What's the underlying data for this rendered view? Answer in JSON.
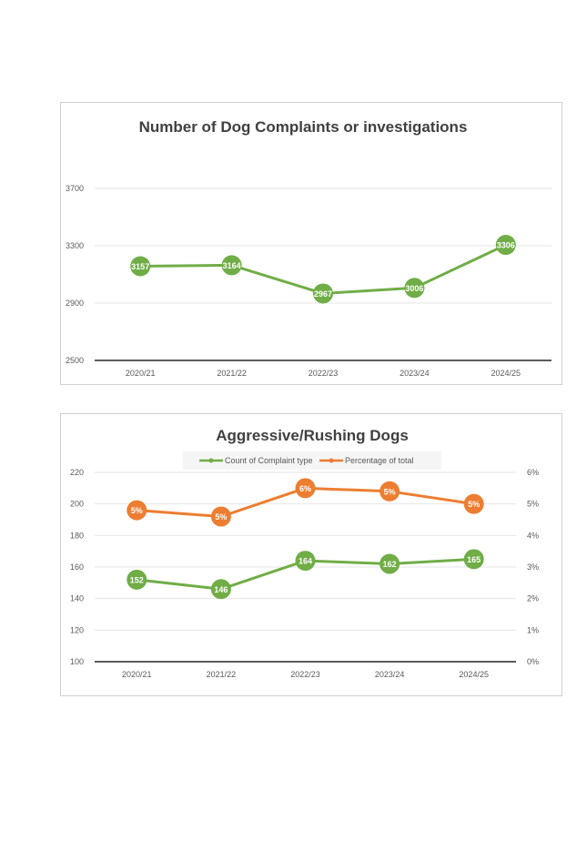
{
  "colors": {
    "green": "#70AD47",
    "orange": "#ED7D31",
    "grid": "#e6e6e6",
    "axis": "#262626"
  },
  "chart_data": [
    {
      "type": "line",
      "title": "Number of Dog Complaints or investigations",
      "categories": [
        "2020/21",
        "2021/22",
        "2022/23",
        "2023/24",
        "2024/25"
      ],
      "series": [
        {
          "name": "Number of Dog Complaints or investigations",
          "values": [
            3157,
            3164,
            2967,
            3006,
            3306
          ],
          "labels": [
            "3157",
            "3164",
            "2967",
            "3006",
            "3306"
          ],
          "color": "#70AD47"
        }
      ],
      "ylim": [
        2500,
        3700
      ],
      "yticks": [
        2500,
        2900,
        3300,
        3700
      ],
      "ytick_labels": [
        "2500",
        "2900",
        "3300",
        "3700"
      ],
      "grid": true,
      "legend": "none"
    },
    {
      "type": "line",
      "title": "Aggressive/Rushing Dogs",
      "categories": [
        "2020/21",
        "2021/22",
        "2022/23",
        "2023/24",
        "2024/25"
      ],
      "series": [
        {
          "name": "Count of Complaint type",
          "axis": "left",
          "values": [
            152,
            146,
            164,
            162,
            165
          ],
          "labels": [
            "152",
            "146",
            "164",
            "162",
            "165"
          ],
          "color": "#70AD47"
        },
        {
          "name": "Percentage of total",
          "axis": "right",
          "values": [
            4.8,
            4.6,
            5.5,
            5.4,
            5.0
          ],
          "labels": [
            "5%",
            "5%",
            "6%",
            "5%",
            "5%"
          ],
          "color": "#ED7D31"
        }
      ],
      "ylim": [
        100,
        220
      ],
      "yticks": [
        100,
        120,
        140,
        160,
        180,
        200,
        220
      ],
      "ytick_labels": [
        "100",
        "120",
        "140",
        "160",
        "180",
        "200",
        "220"
      ],
      "y2lim": [
        0,
        6
      ],
      "y2ticks": [
        0,
        1,
        2,
        3,
        4,
        5,
        6
      ],
      "y2tick_labels": [
        "0%",
        "1%",
        "2%",
        "3%",
        "4%",
        "5%",
        "6%"
      ],
      "grid": true,
      "legend": "top-center"
    }
  ]
}
